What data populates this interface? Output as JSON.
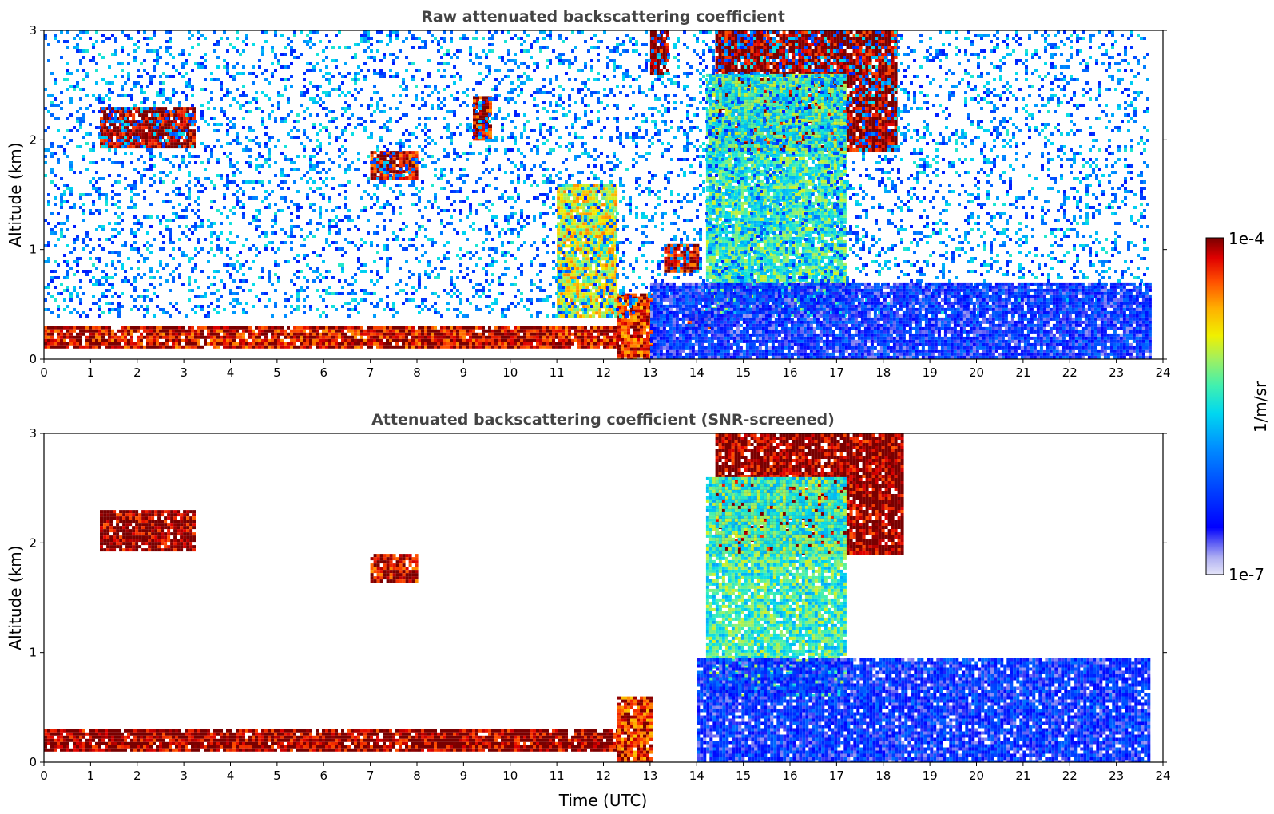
{
  "chart_data": [
    {
      "type": "heatmap",
      "title": "Raw attenuated backscattering coefficient",
      "xlabel": "",
      "ylabel": "Altitude (km)",
      "xlim": [
        0,
        24
      ],
      "ylim": [
        0,
        3
      ],
      "xticks": [
        "0",
        "1",
        "2",
        "3",
        "4",
        "5",
        "6",
        "7",
        "8",
        "9",
        "10",
        "11",
        "12",
        "13",
        "14",
        "15",
        "16",
        "17",
        "18",
        "19",
        "20",
        "21",
        "22",
        "23",
        "24"
      ],
      "yticks": [
        "0",
        "1",
        "2",
        "3"
      ],
      "features": [
        {
          "kind": "surface_layer",
          "x": [
            0,
            12.3
          ],
          "y": [
            0.1,
            0.3
          ],
          "level": 0.95
        },
        {
          "kind": "dense_layer",
          "x": [
            12.3,
            13.0
          ],
          "y": [
            0,
            0.6
          ],
          "level": 0.9
        },
        {
          "kind": "cloud",
          "x": [
            1.2,
            3.2
          ],
          "y": [
            1.95,
            2.3
          ],
          "level": 1.0
        },
        {
          "kind": "cloud",
          "x": [
            7.0,
            8.0
          ],
          "y": [
            1.65,
            1.9
          ],
          "level": 0.95
        },
        {
          "kind": "cloud",
          "x": [
            9.2,
            9.6
          ],
          "y": [
            2.0,
            2.4
          ],
          "level": 0.95
        },
        {
          "kind": "cloud",
          "x": [
            11.0,
            12.3
          ],
          "y": [
            0.4,
            1.6
          ],
          "level": 0.7
        },
        {
          "kind": "cloud",
          "x": [
            13.0,
            13.4
          ],
          "y": [
            2.6,
            3.0
          ],
          "level": 1.0
        },
        {
          "kind": "cloud",
          "x": [
            13.3,
            14.0
          ],
          "y": [
            0.8,
            1.05
          ],
          "level": 0.95
        },
        {
          "kind": "cloud",
          "x": [
            13.8,
            14.3
          ],
          "y": [
            0.3,
            0.45
          ],
          "level": 0.95
        },
        {
          "kind": "cloud_deck",
          "x": [
            14.4,
            18.3
          ],
          "y": [
            1.9,
            3.0
          ],
          "level": 1.0
        },
        {
          "kind": "virga",
          "x": [
            14.2,
            17.2
          ],
          "y": [
            0.4,
            2.6
          ],
          "level": 0.55
        },
        {
          "kind": "noise",
          "x": [
            0,
            23.7
          ],
          "y": [
            0.4,
            3.0
          ],
          "level": 0.3
        },
        {
          "kind": "boundary_layer",
          "x": [
            13.0,
            23.7
          ],
          "y": [
            0,
            0.7
          ],
          "level": 0.2
        }
      ]
    },
    {
      "type": "heatmap",
      "title": "Attenuated backscattering coefficient (SNR-screened)",
      "xlabel": "Time (UTC)",
      "ylabel": "Altitude (km)",
      "xlim": [
        0,
        24
      ],
      "ylim": [
        0,
        3
      ],
      "xticks": [
        "0",
        "1",
        "2",
        "3",
        "4",
        "5",
        "6",
        "7",
        "8",
        "9",
        "10",
        "11",
        "12",
        "13",
        "14",
        "15",
        "16",
        "17",
        "18",
        "19",
        "20",
        "21",
        "22",
        "23",
        "24"
      ],
      "yticks": [
        "0",
        "1",
        "2",
        "3"
      ],
      "features": [
        {
          "kind": "surface_layer",
          "x": [
            0,
            12.3
          ],
          "y": [
            0.1,
            0.3
          ],
          "level": 1.0
        },
        {
          "kind": "dense_layer",
          "x": [
            12.3,
            13.0
          ],
          "y": [
            0,
            0.6
          ],
          "level": 0.9
        },
        {
          "kind": "cloud",
          "x": [
            1.2,
            3.2
          ],
          "y": [
            1.95,
            2.3
          ],
          "level": 1.0
        },
        {
          "kind": "cloud",
          "x": [
            7.0,
            8.0
          ],
          "y": [
            1.65,
            1.9
          ],
          "level": 0.95
        },
        {
          "kind": "cloud_deck",
          "x": [
            14.4,
            18.4
          ],
          "y": [
            1.9,
            3.0
          ],
          "level": 1.0
        },
        {
          "kind": "virga",
          "x": [
            14.2,
            17.2
          ],
          "y": [
            0.6,
            2.6
          ],
          "level": 0.55
        },
        {
          "kind": "boundary_layer",
          "x": [
            14.0,
            23.7
          ],
          "y": [
            0,
            0.95
          ],
          "level": 0.2
        }
      ]
    }
  ],
  "colorbar": {
    "label": "1/m/sr",
    "max_label": "1e-4",
    "min_label": "1e-7",
    "colors": [
      "#e4e4f8",
      "#b8b8f2",
      "#8c8cee",
      "#3a3af5",
      "#0000ff",
      "#0050ff",
      "#00a0ff",
      "#00e0e8",
      "#40f0b0",
      "#a0f060",
      "#f0f000",
      "#ffb000",
      "#ff5000",
      "#e00000",
      "#800000"
    ]
  }
}
